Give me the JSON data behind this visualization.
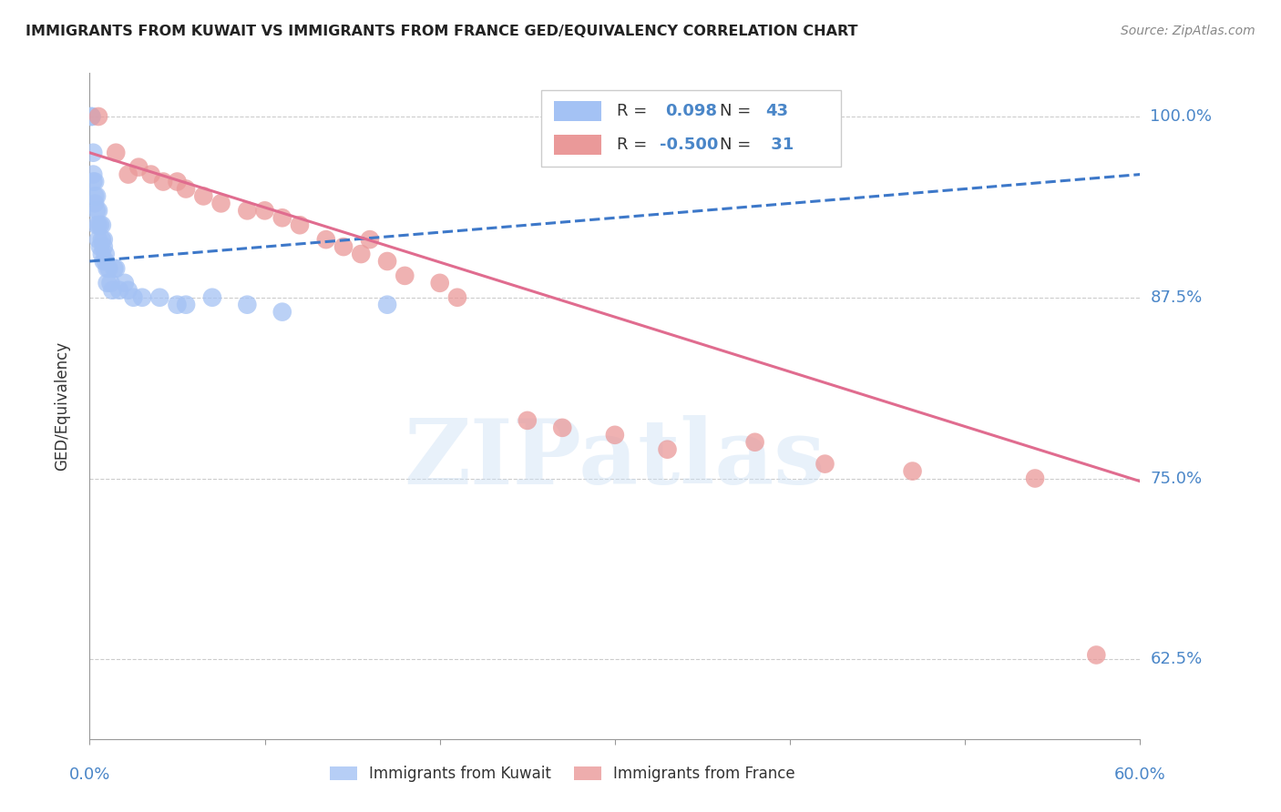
{
  "title": "IMMIGRANTS FROM KUWAIT VS IMMIGRANTS FROM FRANCE GED/EQUIVALENCY CORRELATION CHART",
  "source": "Source: ZipAtlas.com",
  "ylabel": "GED/Equivalency",
  "xlim": [
    0.0,
    0.6
  ],
  "ylim": [
    0.57,
    1.03
  ],
  "yticks": [
    0.625,
    0.75,
    0.875,
    1.0
  ],
  "ytick_labels": [
    "62.5%",
    "75.0%",
    "87.5%",
    "100.0%"
  ],
  "watermark": "ZIPatlas",
  "kuwait_color": "#a4c2f4",
  "france_color": "#ea9999",
  "kuwait_line_color": "#3d78c9",
  "france_line_color": "#e06c8f",
  "kuwait_scatter_x": [
    0.001,
    0.001,
    0.002,
    0.002,
    0.002,
    0.003,
    0.003,
    0.003,
    0.004,
    0.004,
    0.004,
    0.005,
    0.005,
    0.005,
    0.006,
    0.006,
    0.007,
    0.007,
    0.007,
    0.008,
    0.008,
    0.008,
    0.009,
    0.009,
    0.01,
    0.01,
    0.011,
    0.012,
    0.013,
    0.014,
    0.015,
    0.017,
    0.02,
    0.022,
    0.025,
    0.03,
    0.04,
    0.05,
    0.055,
    0.07,
    0.09,
    0.11,
    0.17
  ],
  "kuwait_scatter_y": [
    1.0,
    1.0,
    0.975,
    0.96,
    0.955,
    0.955,
    0.945,
    0.94,
    0.945,
    0.935,
    0.925,
    0.935,
    0.925,
    0.915,
    0.925,
    0.91,
    0.925,
    0.915,
    0.905,
    0.915,
    0.91,
    0.9,
    0.905,
    0.9,
    0.895,
    0.885,
    0.895,
    0.885,
    0.88,
    0.895,
    0.895,
    0.88,
    0.885,
    0.88,
    0.875,
    0.875,
    0.875,
    0.87,
    0.87,
    0.875,
    0.87,
    0.865,
    0.87
  ],
  "france_scatter_x": [
    0.005,
    0.015,
    0.022,
    0.028,
    0.035,
    0.042,
    0.05,
    0.055,
    0.065,
    0.075,
    0.09,
    0.1,
    0.11,
    0.12,
    0.135,
    0.145,
    0.155,
    0.16,
    0.17,
    0.18,
    0.2,
    0.21,
    0.25,
    0.27,
    0.3,
    0.33,
    0.38,
    0.42,
    0.47,
    0.54,
    0.575
  ],
  "france_scatter_y": [
    1.0,
    0.975,
    0.96,
    0.965,
    0.96,
    0.955,
    0.955,
    0.95,
    0.945,
    0.94,
    0.935,
    0.935,
    0.93,
    0.925,
    0.915,
    0.91,
    0.905,
    0.915,
    0.9,
    0.89,
    0.885,
    0.875,
    0.79,
    0.785,
    0.78,
    0.77,
    0.775,
    0.76,
    0.755,
    0.75,
    0.628
  ],
  "kuwait_trend_x": [
    0.0,
    0.6
  ],
  "kuwait_trend_y": [
    0.9,
    0.96
  ],
  "france_trend_x": [
    0.0,
    0.6
  ],
  "france_trend_y": [
    0.975,
    0.748
  ]
}
